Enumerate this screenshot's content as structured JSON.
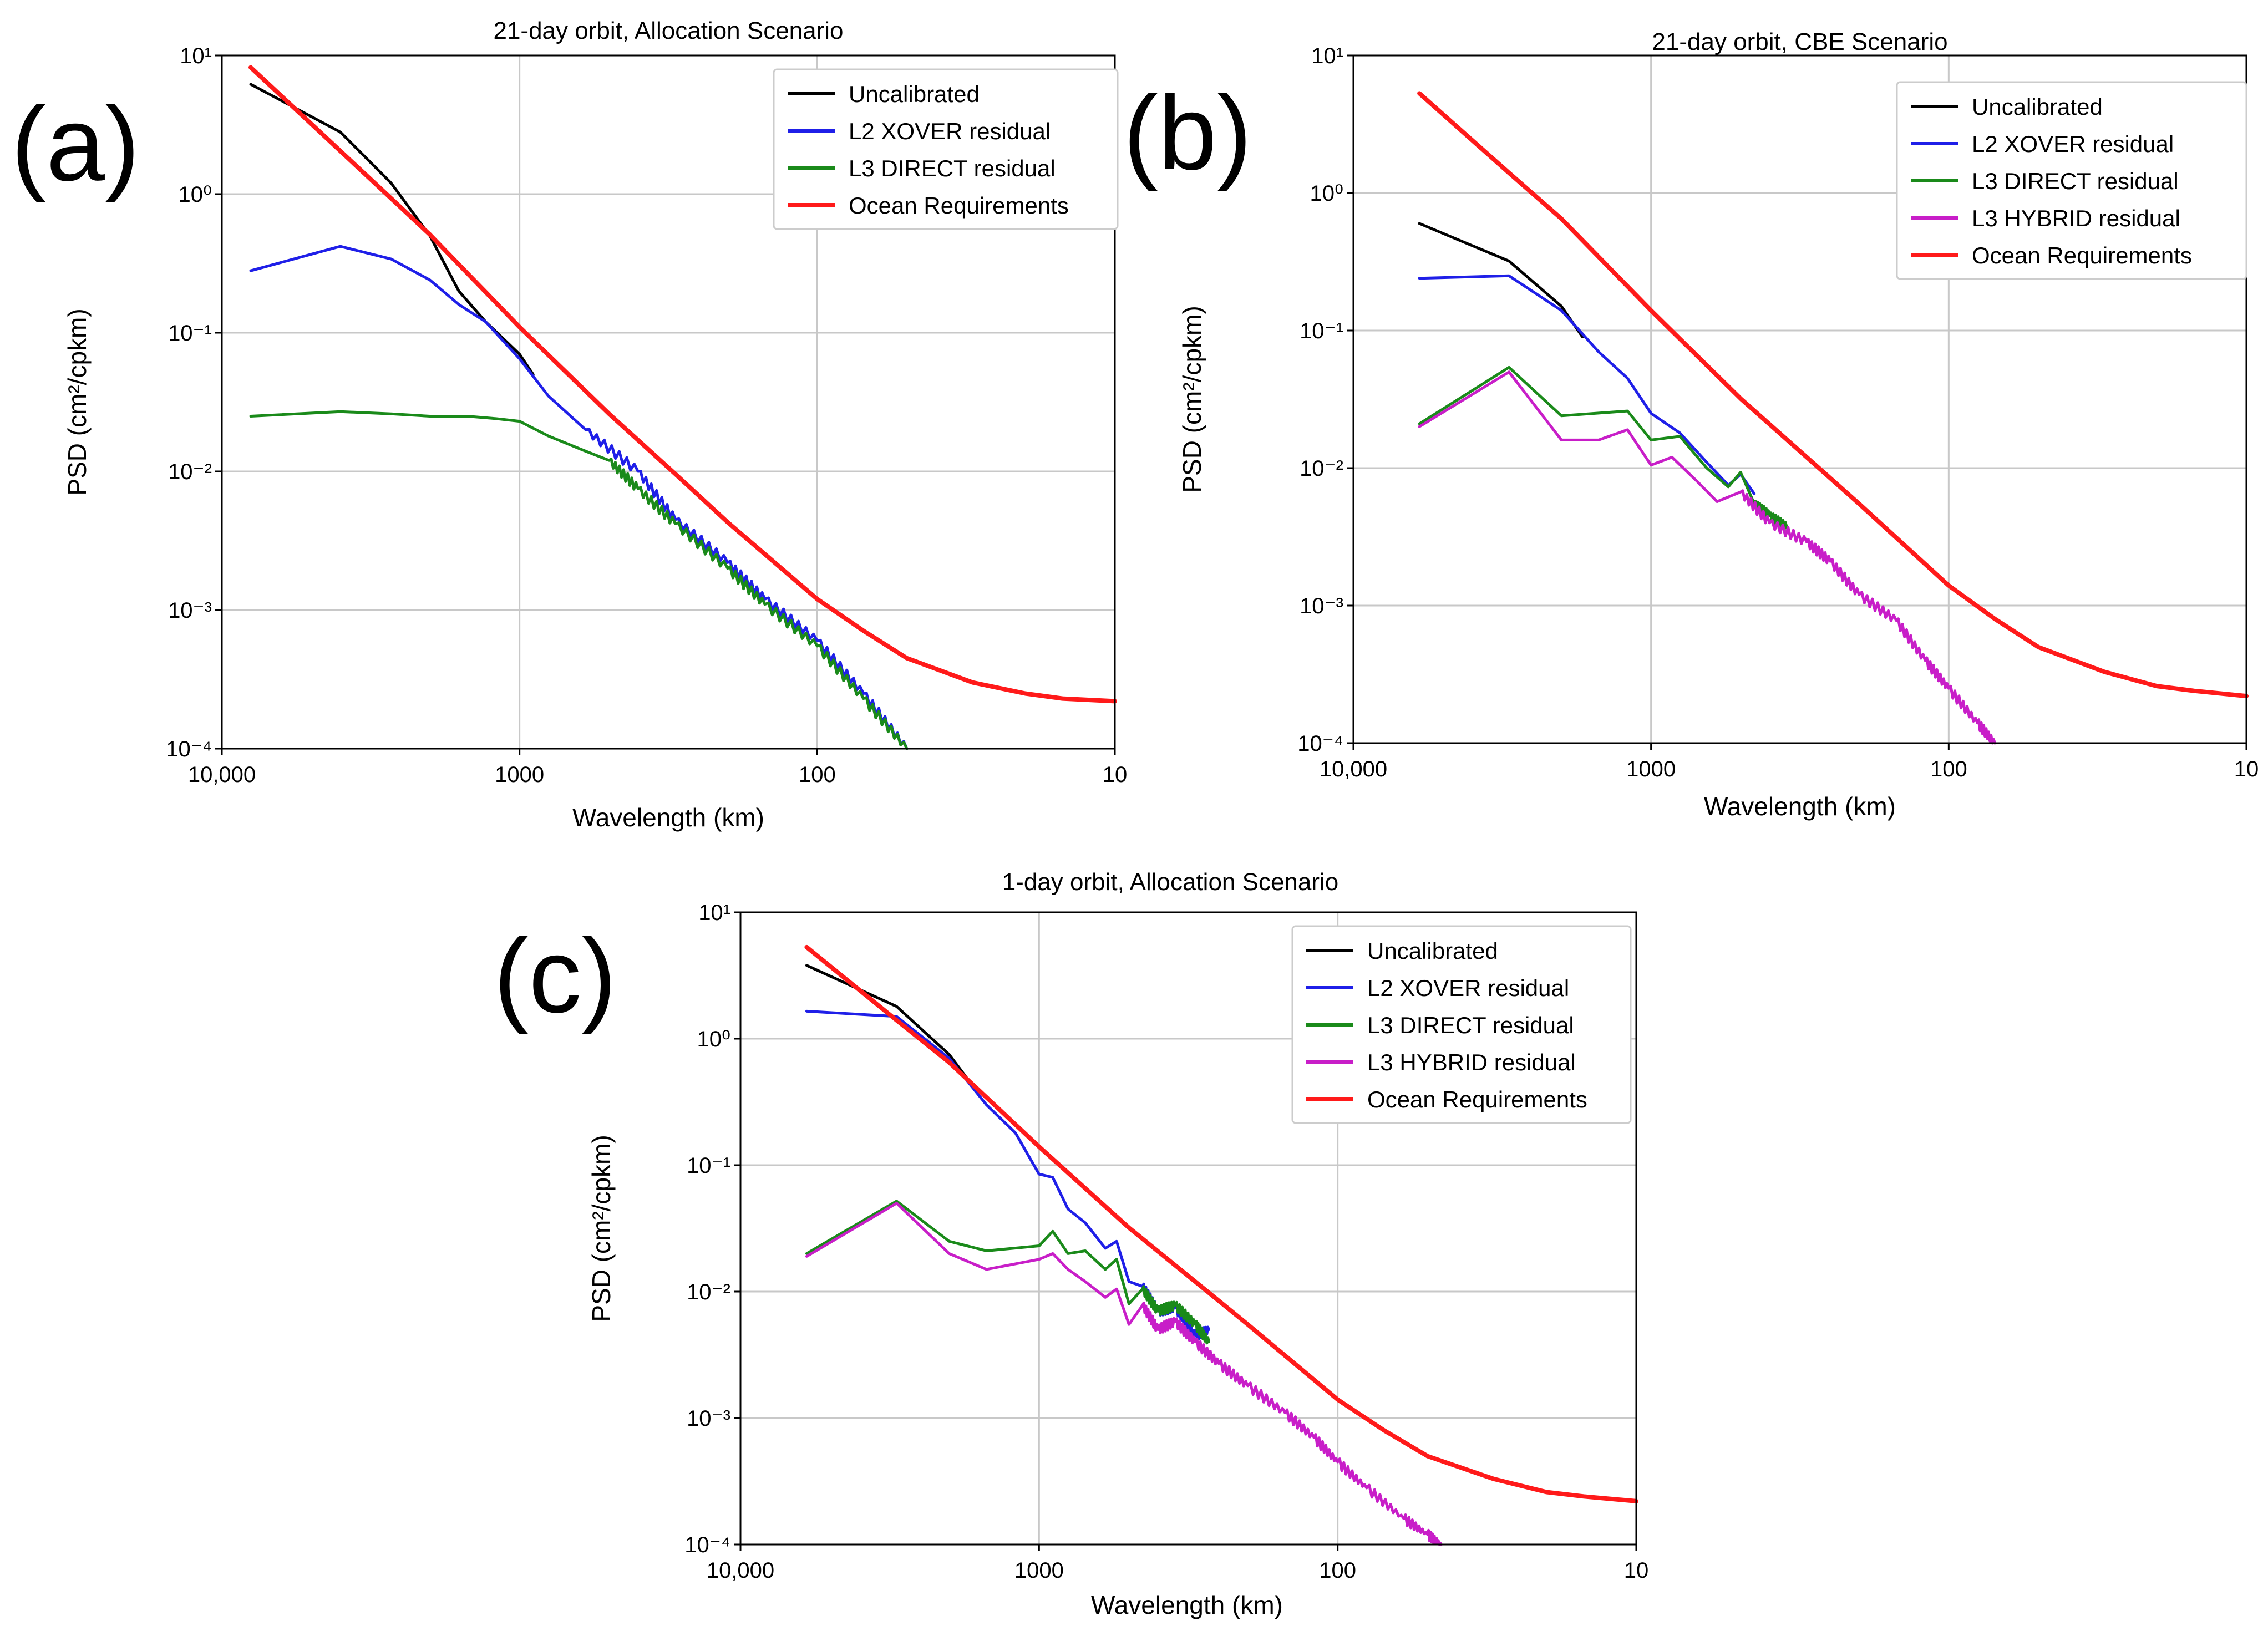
{
  "colors": {
    "Uncalibrated": "#000000",
    "L2 XOVER residual": "#1f1fe8",
    "L3 DIRECT residual": "#1a8a1a",
    "L3 HYBRID residual": "#c81ec8",
    "Ocean Requirements": "#ff1a1a"
  },
  "chart_data": [
    {
      "id": "a",
      "type": "line",
      "panel_label": "(a)",
      "title": "21-day orbit, Allocation Scenario",
      "xlabel": "Wavelength (km)",
      "ylabel": "PSD (cm²/cpkm)",
      "x_scale": "log",
      "y_scale": "log",
      "x_reversed": true,
      "xlim": [
        10000,
        10
      ],
      "ylim": [
        0.0001,
        10
      ],
      "x_ticks": [
        10000,
        1000,
        100,
        10
      ],
      "x_tick_labels": [
        "10,000",
        "1000",
        "100",
        "10"
      ],
      "y_ticks": [
        0.0001,
        0.001,
        0.01,
        0.1,
        1,
        10
      ],
      "y_tick_labels": [
        "10⁻⁴",
        "10⁻³",
        "10⁻²",
        "10⁻¹",
        "10⁰",
        "10¹"
      ],
      "grid": true,
      "legend_position": "top-right",
      "legend": [
        "Uncalibrated",
        "L2 XOVER residual",
        "L3 DIRECT residual",
        "Ocean Requirements"
      ],
      "series": [
        {
          "name": "Uncalibrated",
          "x": [
            8000,
            4000,
            2700,
            2000,
            1600,
            1300,
            1000,
            900
          ],
          "y": [
            6.2,
            2.8,
            1.2,
            0.5,
            0.2,
            0.12,
            0.07,
            0.05
          ]
        },
        {
          "name": "L2 XOVER residual",
          "x": [
            8000,
            4000,
            2700,
            2000,
            1600,
            1300,
            1000,
            800,
            600,
            400,
            300,
            200,
            150,
            100,
            70,
            50
          ],
          "y": [
            0.28,
            0.42,
            0.34,
            0.24,
            0.16,
            0.12,
            0.065,
            0.035,
            0.02,
            0.01,
            0.0045,
            0.0022,
            0.0012,
            0.0006,
            0.00025,
            0.0001
          ]
        },
        {
          "name": "L3 DIRECT residual",
          "x": [
            8000,
            4000,
            2700,
            2000,
            1500,
            1200,
            1000,
            800,
            600,
            500,
            400,
            300,
            200,
            150,
            100,
            70,
            50
          ],
          "y": [
            0.025,
            0.027,
            0.026,
            0.025,
            0.025,
            0.024,
            0.023,
            0.018,
            0.014,
            0.012,
            0.0075,
            0.0042,
            0.002,
            0.0011,
            0.00055,
            0.00023,
            0.0001
          ]
        },
        {
          "name": "Ocean Requirements",
          "x": [
            8000,
            5000,
            3000,
            2000,
            1000,
            500,
            300,
            200,
            100,
            70,
            50,
            30,
            20,
            15,
            10
          ],
          "y": [
            8.2,
            3.2,
            1.15,
            0.51,
            0.11,
            0.026,
            0.0096,
            0.0043,
            0.0012,
            0.00071,
            0.00045,
            0.0003,
            0.00025,
            0.00023,
            0.00022
          ]
        }
      ]
    },
    {
      "id": "b",
      "type": "line",
      "panel_label": "(b)",
      "title": "21-day orbit, CBE Scenario",
      "xlabel": "Wavelength (km)",
      "ylabel": "PSD (cm²/cpkm)",
      "x_scale": "log",
      "y_scale": "log",
      "x_reversed": true,
      "xlim": [
        10000,
        10
      ],
      "ylim": [
        0.0001,
        10
      ],
      "x_ticks": [
        10000,
        1000,
        100,
        10
      ],
      "x_tick_labels": [
        "10,000",
        "1000",
        "100",
        "10"
      ],
      "y_ticks": [
        0.0001,
        0.001,
        0.01,
        0.1,
        1,
        10
      ],
      "y_tick_labels": [
        "10⁻⁴",
        "10⁻³",
        "10⁻²",
        "10⁻¹",
        "10⁰",
        "10¹"
      ],
      "grid": true,
      "legend_position": "top-right",
      "legend": [
        "Uncalibrated",
        "L2 XOVER residual",
        "L3 DIRECT residual",
        "L3 HYBRID residual",
        "Ocean Requirements"
      ],
      "series": [
        {
          "name": "Uncalibrated",
          "x": [
            6000,
            3000,
            2000,
            1700
          ],
          "y": [
            0.6,
            0.32,
            0.15,
            0.09
          ]
        },
        {
          "name": "L2 XOVER residual",
          "x": [
            6000,
            3000,
            2000,
            1500,
            1200,
            1000,
            800,
            650,
            550,
            500,
            450
          ],
          "y": [
            0.24,
            0.25,
            0.14,
            0.07,
            0.045,
            0.025,
            0.018,
            0.011,
            0.0075,
            0.009,
            0.0065
          ]
        },
        {
          "name": "L3 DIRECT residual",
          "x": [
            6000,
            3000,
            2000,
            1200,
            1000,
            800,
            650,
            550,
            500,
            450,
            400,
            350
          ],
          "y": [
            0.021,
            0.054,
            0.024,
            0.026,
            0.016,
            0.017,
            0.01,
            0.0073,
            0.0093,
            0.0055,
            0.0045,
            0.0037
          ]
        },
        {
          "name": "L3 HYBRID residual",
          "x": [
            6000,
            3000,
            2000,
            1500,
            1200,
            1000,
            850,
            700,
            600,
            500,
            400,
            300,
            250,
            200,
            150,
            120,
            100,
            80,
            70
          ],
          "y": [
            0.02,
            0.05,
            0.016,
            0.016,
            0.019,
            0.0105,
            0.012,
            0.008,
            0.0057,
            0.0067,
            0.004,
            0.0029,
            0.0021,
            0.0012,
            0.00078,
            0.0004,
            0.00025,
            0.00014,
            0.0001
          ]
        },
        {
          "name": "Ocean Requirements",
          "x": [
            6000,
            3000,
            2000,
            1000,
            500,
            300,
            200,
            100,
            70,
            50,
            30,
            20,
            15,
            10
          ],
          "y": [
            5.3,
            1.4,
            0.65,
            0.14,
            0.032,
            0.012,
            0.0055,
            0.0014,
            0.0008,
            0.0005,
            0.00033,
            0.00026,
            0.00024,
            0.00022
          ]
        }
      ]
    },
    {
      "id": "c",
      "type": "line",
      "panel_label": "(c)",
      "title": "1-day orbit, Allocation Scenario",
      "xlabel": "Wavelength (km)",
      "ylabel": "PSD (cm²/cpkm)",
      "x_scale": "log",
      "y_scale": "log",
      "x_reversed": true,
      "xlim": [
        10000,
        10
      ],
      "ylim": [
        0.0001,
        10
      ],
      "x_ticks": [
        10000,
        1000,
        100,
        10
      ],
      "x_tick_labels": [
        "10,000",
        "1000",
        "100",
        "10"
      ],
      "y_ticks": [
        0.0001,
        0.001,
        0.01,
        0.1,
        1,
        10
      ],
      "y_tick_labels": [
        "10⁻⁴",
        "10⁻³",
        "10⁻²",
        "10⁻¹",
        "10⁰",
        "10¹"
      ],
      "grid": true,
      "legend_position": "top-right",
      "legend": [
        "Uncalibrated",
        "L2 XOVER residual",
        "L3 DIRECT residual",
        "L3 HYBRID residual",
        "Ocean Requirements"
      ],
      "series": [
        {
          "name": "Uncalibrated",
          "x": [
            6000,
            3000,
            2000,
            1700
          ],
          "y": [
            3.8,
            1.8,
            0.75,
            0.45
          ]
        },
        {
          "name": "L2 XOVER residual",
          "x": [
            6000,
            3000,
            2000,
            1500,
            1200,
            1000,
            900,
            800,
            700,
            600,
            550,
            500,
            450,
            400,
            350,
            300,
            270
          ],
          "y": [
            1.65,
            1.5,
            0.7,
            0.3,
            0.18,
            0.085,
            0.08,
            0.045,
            0.035,
            0.022,
            0.025,
            0.012,
            0.011,
            0.007,
            0.0075,
            0.0045,
            0.005
          ]
        },
        {
          "name": "L3 DIRECT residual",
          "x": [
            6000,
            3000,
            2000,
            1500,
            1000,
            900,
            800,
            700,
            600,
            550,
            500,
            450,
            400,
            350,
            300,
            270
          ],
          "y": [
            0.02,
            0.052,
            0.025,
            0.021,
            0.023,
            0.03,
            0.02,
            0.021,
            0.015,
            0.018,
            0.008,
            0.0105,
            0.007,
            0.0078,
            0.0055,
            0.004
          ]
        },
        {
          "name": "L3 HYBRID residual",
          "x": [
            6000,
            3000,
            2000,
            1500,
            1000,
            900,
            800,
            700,
            600,
            550,
            500,
            450,
            400,
            350,
            300,
            250,
            200,
            150,
            120,
            100,
            80,
            60,
            50,
            45
          ],
          "y": [
            0.019,
            0.05,
            0.02,
            0.015,
            0.018,
            0.02,
            0.015,
            0.012,
            0.009,
            0.0105,
            0.0055,
            0.0078,
            0.005,
            0.0058,
            0.004,
            0.0027,
            0.0018,
            0.0011,
            0.0007,
            0.00045,
            0.00028,
            0.00016,
            0.00012,
            0.0001
          ]
        },
        {
          "name": "Ocean Requirements",
          "x": [
            6000,
            3000,
            2000,
            1000,
            500,
            300,
            200,
            100,
            70,
            50,
            30,
            20,
            15,
            10
          ],
          "y": [
            5.3,
            1.4,
            0.65,
            0.14,
            0.032,
            0.012,
            0.0055,
            0.0014,
            0.0008,
            0.0005,
            0.00033,
            0.00026,
            0.00024,
            0.00022
          ]
        }
      ]
    }
  ]
}
